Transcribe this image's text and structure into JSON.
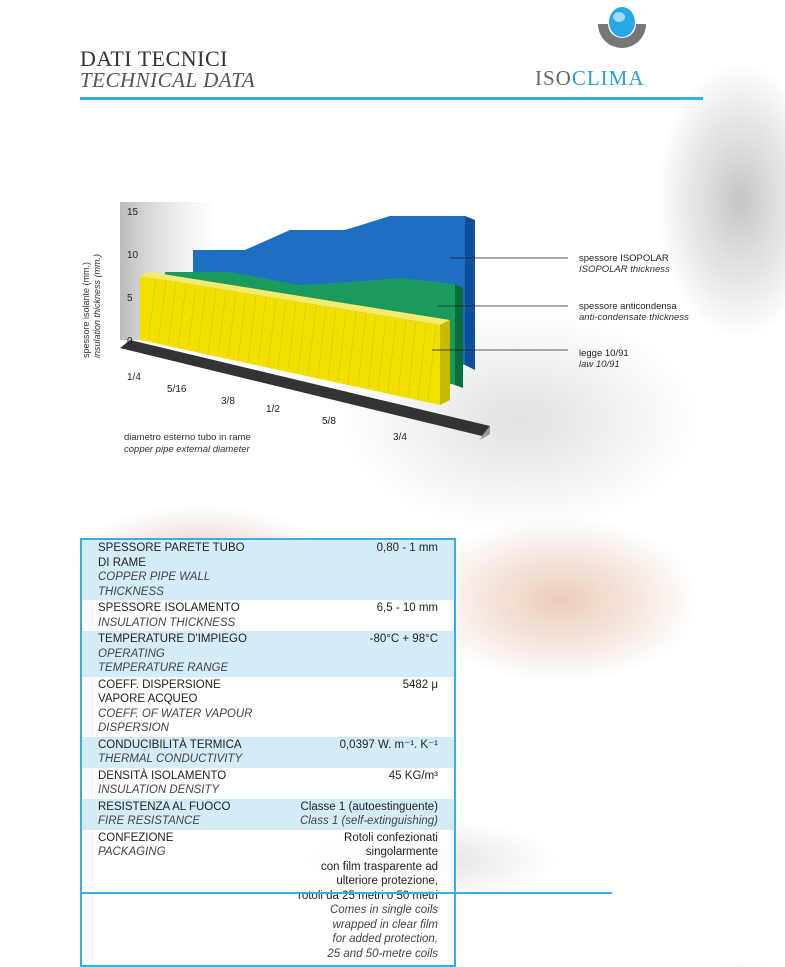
{
  "header": {
    "title": "DATI TECNICI",
    "subtitle": "TECHNICAL DATA",
    "logo": {
      "iso": "ISO",
      "clima": "CLIMA"
    }
  },
  "figure": {
    "y_label": [
      "spessore isolante (mm.)",
      "insulation thickness (mm.)"
    ],
    "y_ticks": [
      "0",
      "5",
      "10",
      "15"
    ],
    "x_ticks": [
      "1/4",
      "5/16",
      "3/8",
      "1/2",
      "5/8",
      "3/4"
    ],
    "x_label": [
      "diametro esterno tubo in rame",
      "copper pipe external diameter"
    ],
    "legend": [
      {
        "it": "spessore ISOPOLAR",
        "en": "ISOPOLAR thickness"
      },
      {
        "it": "spessore anticondensa",
        "en": "anti-condensate thickness"
      },
      {
        "it": "legge 10/91",
        "en": "law 10/91"
      }
    ]
  },
  "table": {
    "rows": [
      {
        "label_it": "SPESSORE PARETE TUBO DI RAME",
        "label_en": "COPPER PIPE WALL THICKNESS",
        "value": [
          "0,80 - 1 mm"
        ]
      },
      {
        "label_it": "SPESSORE ISOLAMENTO",
        "label_en": "INSULATION THICKNESS",
        "value": [
          "6,5 - 10 mm"
        ]
      },
      {
        "label_it": "TEMPERATURE D'IMPIEGO",
        "label_en": "OPERATING TEMPERATURE RANGE",
        "value": [
          "-80°C + 98°C"
        ]
      },
      {
        "label_it": "COEFF. DISPERSIONE VAPORE ACQUEO",
        "label_en": "COEFF. OF WATER VAPOUR DISPERSION",
        "value": [
          "5482 μ"
        ]
      },
      {
        "label_it": "CONDUCIBILITÀ TERMICA",
        "label_en": "THERMAL CONDUCTIVITY",
        "value": [
          "0,0397 W. m⁻¹. K⁻¹"
        ]
      },
      {
        "label_it": "DENSITÀ ISOLAMENTO",
        "label_en": "INSULATION DENSITY",
        "value": [
          "45 KG/m³"
        ]
      },
      {
        "label_it": "RESISTENZA AL FUOCO",
        "label_en": "FIRE RESISTANCE",
        "value": [
          "Classe 1 (autoestinguente)"
        ],
        "value_en": [
          "Class 1 (self-extinguishing)"
        ]
      },
      {
        "label_it": "CONFEZIONE",
        "label_en": "PACKAGING",
        "value": [
          "Rotoli confezionati singolarmente",
          "con film trasparente ad ulteriore protezione,",
          "rotoli da 25 metri o 50 metri"
        ],
        "value_en": [
          "Comes in single coils wrapped in clear film",
          "for added protection,",
          "25 and 50-metre coils"
        ]
      }
    ]
  }
}
